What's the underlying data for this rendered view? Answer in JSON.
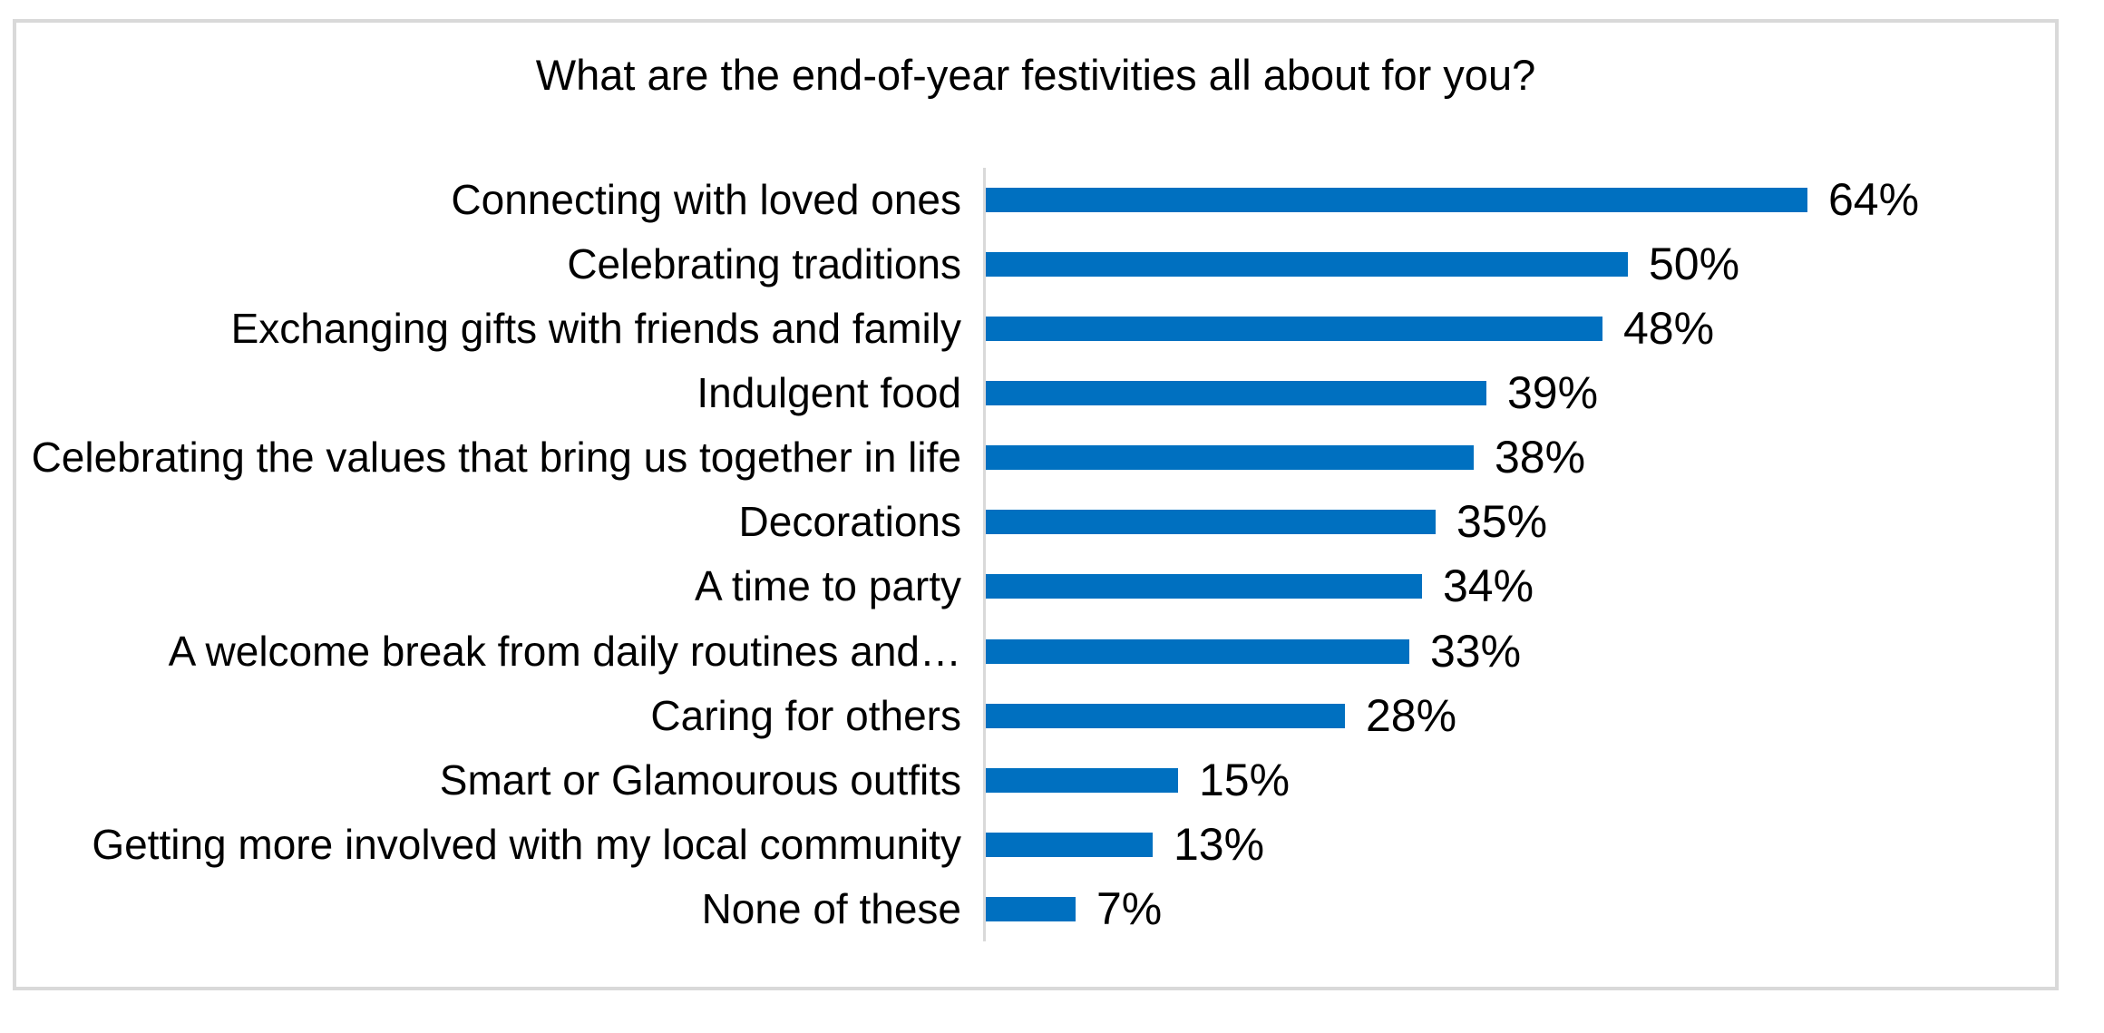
{
  "chart_data": {
    "type": "bar",
    "orientation": "horizontal",
    "title": "What are the end-of-year festivities all about for you?",
    "categories": [
      "Connecting with loved ones",
      "Celebrating traditions",
      "Exchanging gifts with friends and family",
      "Indulgent food",
      "Celebrating the values that bring us together in life",
      "Decorations",
      "A time to party",
      "A welcome break from daily routines and…",
      "Caring for others",
      "Smart or Glamourous outfits",
      "Getting more involved with my local community",
      "None of these"
    ],
    "values": [
      64,
      50,
      48,
      39,
      38,
      35,
      34,
      33,
      28,
      15,
      13,
      7
    ],
    "value_labels": [
      "64%",
      "50%",
      "48%",
      "39%",
      "38%",
      "35%",
      "34%",
      "33%",
      "28%",
      "15%",
      "13%",
      "7%"
    ],
    "value_suffix": "%",
    "xlim": [
      0,
      70
    ],
    "grid": "off",
    "legend": "none",
    "data_labels_position": "outside-end",
    "colors": {
      "bar": "#0070c0",
      "axis": "#d9d9d9",
      "frame": "#d9d9d9",
      "text": "#000000",
      "background": "#ffffff"
    }
  }
}
